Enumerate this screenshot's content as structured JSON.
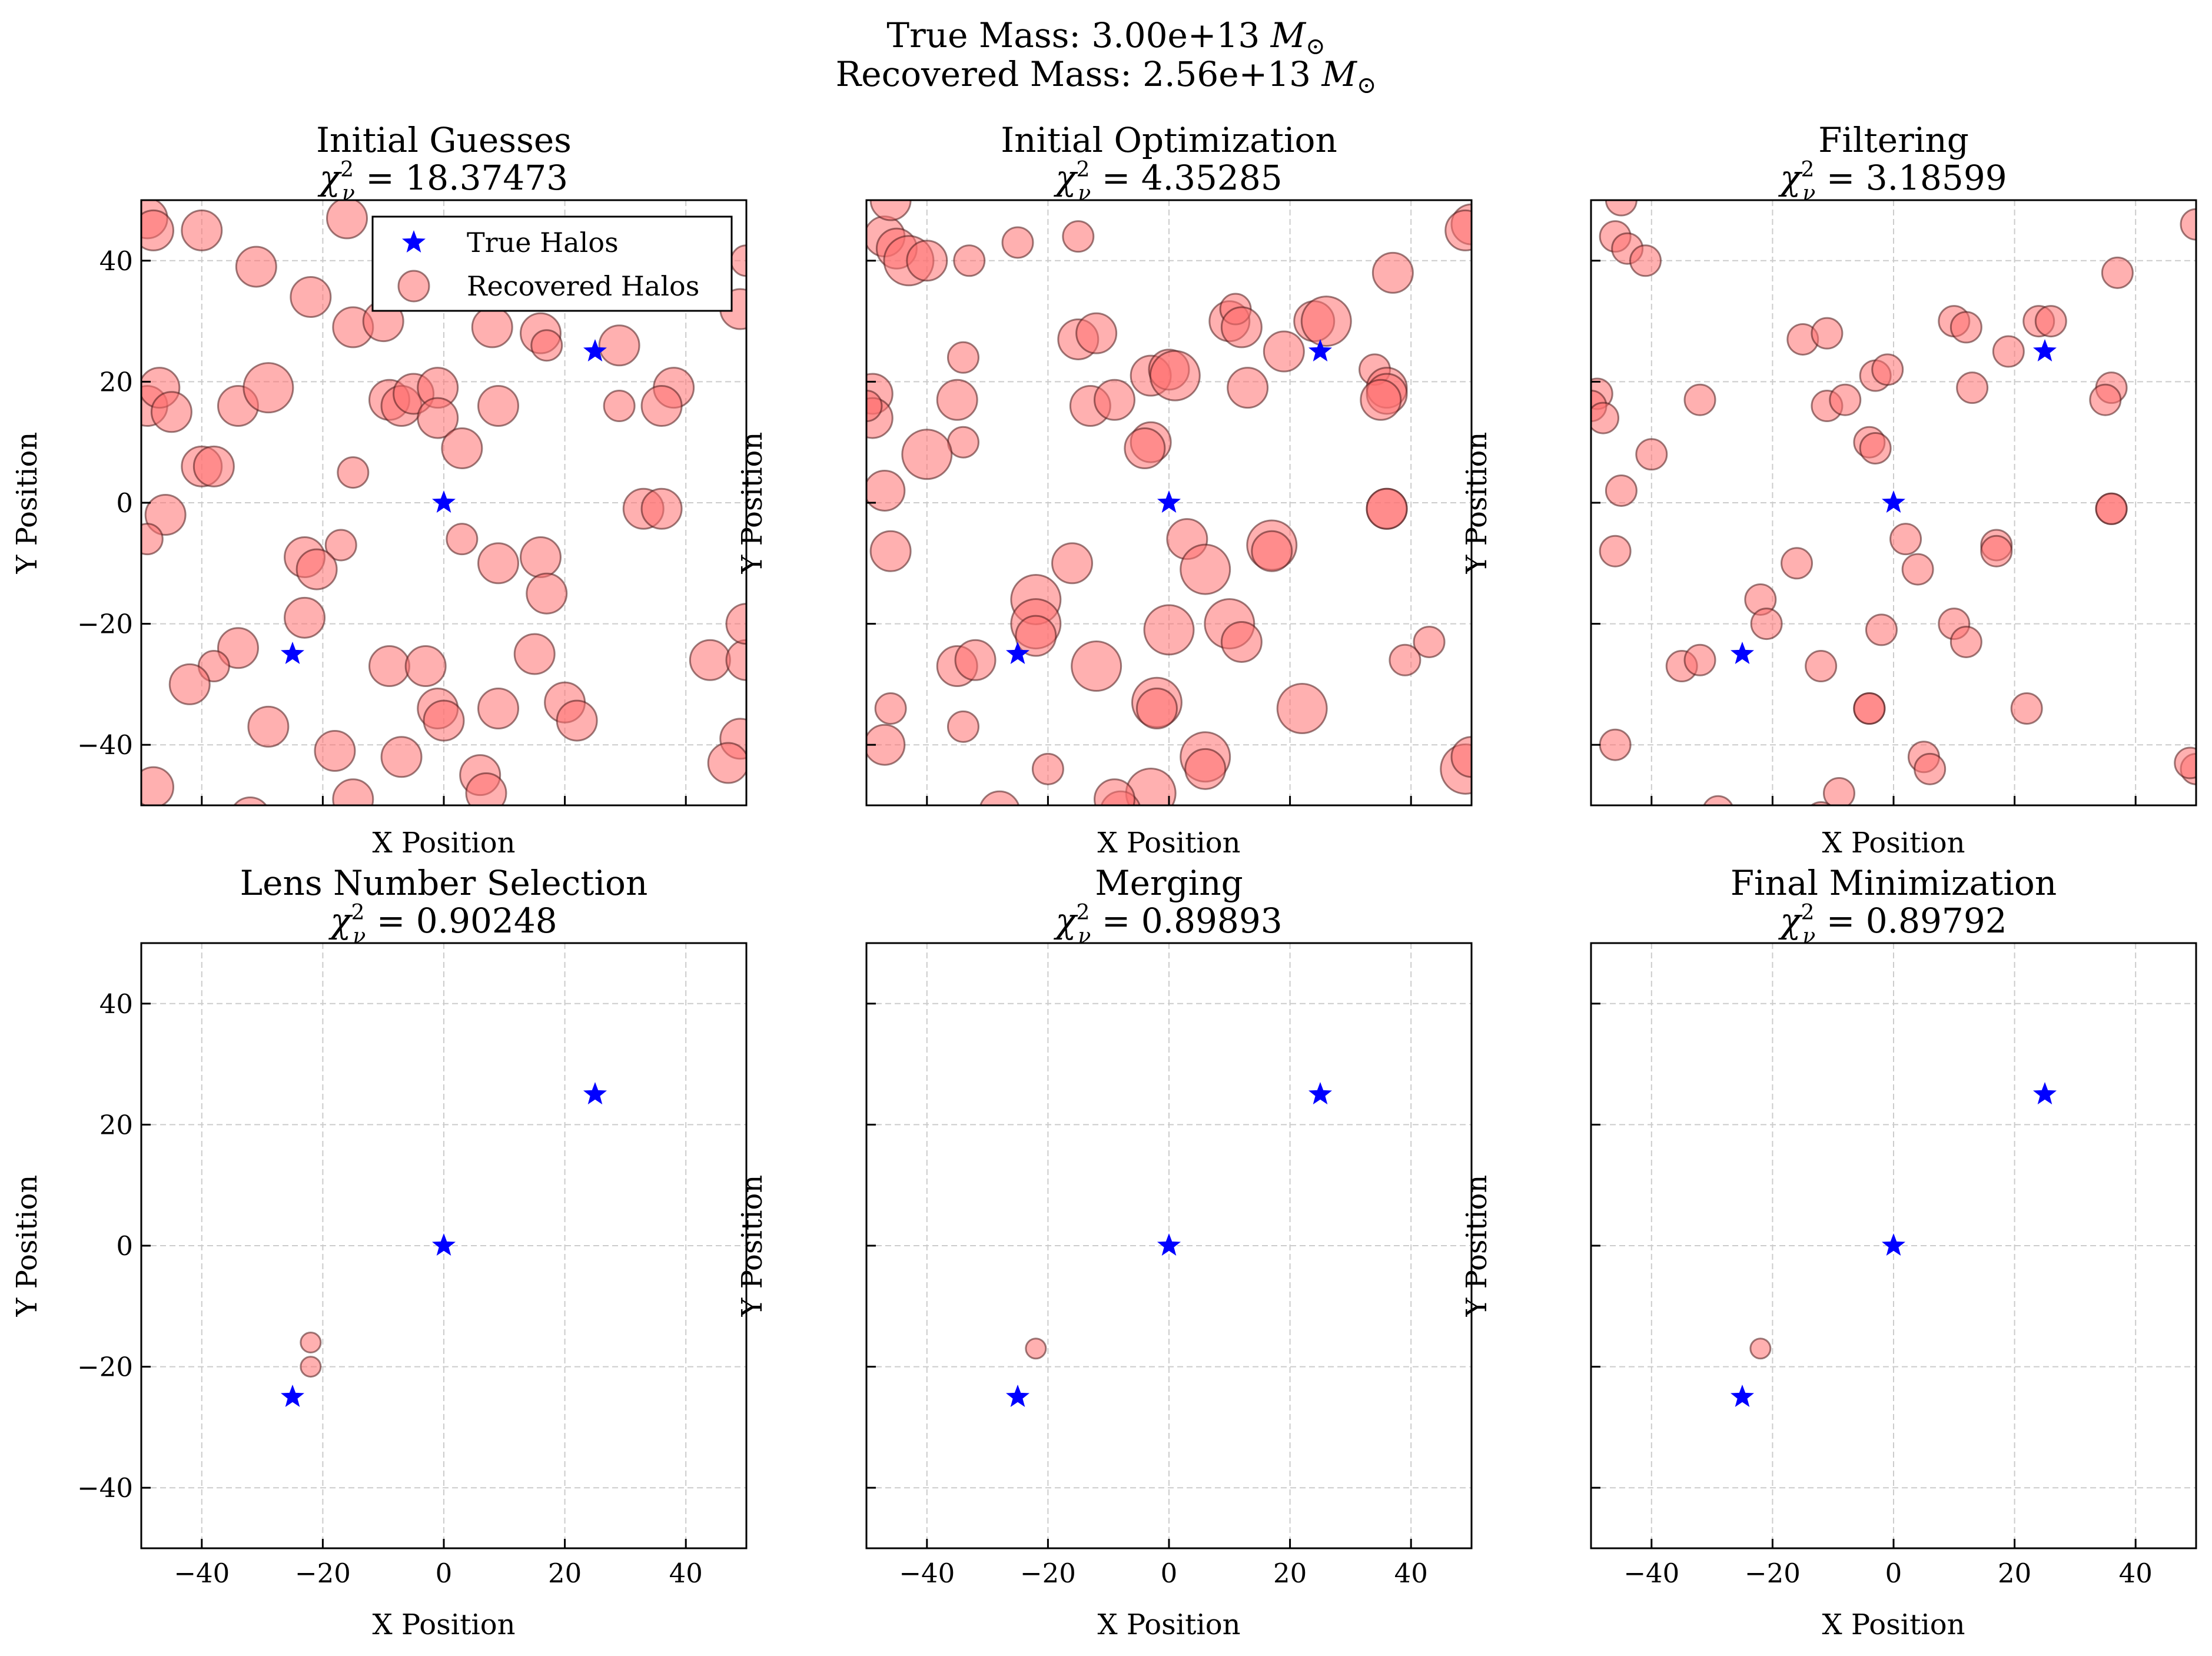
{
  "suptitle": {
    "line1_prefix": "True Mass: 3.00e+13 ",
    "line2_prefix": "Recovered Mass: 2.56e+13 ",
    "unit_symbol": "M",
    "unit_subscript": "⊙"
  },
  "colors": {
    "true_halo": "#0000ff",
    "recovered_fill": "#ff6f6f",
    "recovered_edge": "#4a1a1a",
    "grid": "#cccccc"
  },
  "legend": {
    "placement": "upper-right of first panel",
    "true_label": "True Halos",
    "recovered_label": "Recovered Halos"
  },
  "chart_data": [
    {
      "type": "scatter",
      "title": "Initial Guesses",
      "stat_symbol": "χ",
      "stat_sub": "ν",
      "stat_sup": "2",
      "stat_value": " = 18.37473",
      "xlabel": "X Position",
      "ylabel": "Y Position",
      "xlim": [
        -50,
        50
      ],
      "ylim": [
        -50,
        50
      ],
      "xticks": [
        "−40",
        "−20",
        "0",
        "20",
        "40"
      ],
      "yticks": [
        "40",
        "20",
        "0",
        "−20",
        "−40"
      ],
      "show_xticklabels": false,
      "show_yticklabels": true,
      "grid": true,
      "true_halos": [
        [
          -25,
          -25
        ],
        [
          0,
          0
        ],
        [
          25,
          25
        ]
      ],
      "recovered_halos": [
        [
          -49,
          47,
          3
        ],
        [
          -48,
          45,
          3
        ],
        [
          -40,
          45,
          3
        ],
        [
          -31,
          39,
          3
        ],
        [
          -22,
          34,
          3
        ],
        [
          -16,
          47,
          3
        ],
        [
          -15,
          29,
          3
        ],
        [
          -10,
          30,
          3
        ],
        [
          -49,
          16,
          3
        ],
        [
          -47,
          19,
          3
        ],
        [
          -45,
          15,
          3
        ],
        [
          -34,
          16,
          3
        ],
        [
          -29,
          19,
          4
        ],
        [
          -40,
          6,
          3
        ],
        [
          -38,
          6,
          3
        ],
        [
          -46,
          -2,
          3
        ],
        [
          -9,
          17,
          3
        ],
        [
          -7,
          16,
          3
        ],
        [
          -5,
          18,
          3
        ],
        [
          -1,
          19,
          3
        ],
        [
          -1,
          14,
          3
        ],
        [
          3,
          9,
          3
        ],
        [
          8,
          29,
          3
        ],
        [
          9,
          16,
          3
        ],
        [
          16,
          28,
          3
        ],
        [
          17,
          26,
          2
        ],
        [
          29,
          26,
          3
        ],
        [
          29,
          16,
          2
        ],
        [
          38,
          19,
          3
        ],
        [
          36,
          16,
          3
        ],
        [
          33,
          -1,
          3
        ],
        [
          36,
          -1,
          3
        ],
        [
          -15,
          5,
          2
        ],
        [
          -17,
          -7,
          2
        ],
        [
          -23,
          -9,
          3
        ],
        [
          -21,
          -11,
          3
        ],
        [
          -23,
          -19,
          3
        ],
        [
          -34,
          -24,
          3
        ],
        [
          -38,
          -27,
          2
        ],
        [
          -42,
          -30,
          3
        ],
        [
          -29,
          -37,
          3
        ],
        [
          -9,
          -27,
          3
        ],
        [
          -3,
          -27,
          3
        ],
        [
          -1,
          -34,
          3
        ],
        [
          0,
          -36,
          3
        ],
        [
          -7,
          -42,
          3
        ],
        [
          -18,
          -41,
          3
        ],
        [
          -15,
          -49,
          3
        ],
        [
          -48,
          -47,
          3
        ],
        [
          3,
          -6,
          2
        ],
        [
          9,
          -10,
          3
        ],
        [
          16,
          -9,
          3
        ],
        [
          17,
          -15,
          3
        ],
        [
          15,
          -25,
          3
        ],
        [
          9,
          -34,
          3
        ],
        [
          20,
          -33,
          3
        ],
        [
          22,
          -36,
          3
        ],
        [
          6,
          -45,
          3
        ],
        [
          7,
          -48,
          3
        ],
        [
          44,
          -26,
          3
        ],
        [
          50,
          -26,
          3
        ],
        [
          49,
          -39,
          3
        ],
        [
          47,
          -43,
          3
        ],
        [
          50,
          -20,
          3
        ],
        [
          49,
          32,
          3
        ],
        [
          -49,
          -6,
          2
        ],
        [
          50,
          40,
          2
        ],
        [
          -32,
          -52,
          3
        ]
      ]
    },
    {
      "type": "scatter",
      "title": "Initial Optimization",
      "stat_symbol": "χ",
      "stat_sub": "ν",
      "stat_sup": "2",
      "stat_value": " = 4.35285",
      "xlabel": "X Position",
      "ylabel": "Y Position",
      "xlim": [
        -50,
        50
      ],
      "ylim": [
        -50,
        50
      ],
      "xticks": [
        "−40",
        "−20",
        "0",
        "20",
        "40"
      ],
      "yticks": [
        "40",
        "20",
        "0",
        "−20",
        "−40"
      ],
      "show_xticklabels": false,
      "show_yticklabels": false,
      "grid": true,
      "true_halos": [
        [
          -25,
          -25
        ],
        [
          0,
          0
        ],
        [
          25,
          25
        ]
      ],
      "recovered_halos": [
        [
          -47,
          44,
          3
        ],
        [
          -45,
          42,
          3
        ],
        [
          -43,
          40,
          4
        ],
        [
          -40,
          40,
          3
        ],
        [
          -33,
          40,
          2
        ],
        [
          -25,
          43,
          2
        ],
        [
          -15,
          44,
          2
        ],
        [
          -49,
          18,
          3
        ],
        [
          -49,
          14,
          3
        ],
        [
          -35,
          17,
          3
        ],
        [
          -34,
          24,
          2
        ],
        [
          -34,
          10,
          2
        ],
        [
          -47,
          2,
          3
        ],
        [
          -40,
          8,
          4
        ],
        [
          -46,
          -8,
          3
        ],
        [
          -46,
          -34,
          2
        ],
        [
          -47,
          -40,
          3
        ],
        [
          -34,
          -37,
          2
        ],
        [
          -35,
          -27,
          3
        ],
        [
          -32,
          -26,
          3
        ],
        [
          -22,
          -16,
          4
        ],
        [
          -22,
          -20,
          4
        ],
        [
          -22,
          -22,
          3
        ],
        [
          -16,
          -10,
          3
        ],
        [
          -12,
          -27,
          4
        ],
        [
          -15,
          27,
          3
        ],
        [
          -12,
          28,
          3
        ],
        [
          -13,
          16,
          3
        ],
        [
          -9,
          17,
          3
        ],
        [
          -3,
          10,
          3
        ],
        [
          -4,
          9,
          3
        ],
        [
          -3,
          21,
          3
        ],
        [
          0,
          22,
          3
        ],
        [
          1,
          21,
          4
        ],
        [
          3,
          -6,
          3
        ],
        [
          6,
          -11,
          4
        ],
        [
          0,
          -21,
          4
        ],
        [
          -2,
          -33,
          4
        ],
        [
          -2,
          -34,
          3
        ],
        [
          6,
          -42,
          4
        ],
        [
          6,
          -44,
          3
        ],
        [
          -3,
          -48,
          4
        ],
        [
          -8,
          -51,
          3
        ],
        [
          -9,
          -49,
          3
        ],
        [
          -20,
          -44,
          2
        ],
        [
          -28,
          -51,
          3
        ],
        [
          10,
          30,
          3
        ],
        [
          11,
          32,
          2
        ],
        [
          12,
          29,
          3
        ],
        [
          13,
          19,
          3
        ],
        [
          19,
          25,
          3
        ],
        [
          24,
          30,
          3
        ],
        [
          26,
          30,
          4
        ],
        [
          34,
          22,
          2
        ],
        [
          36,
          19,
          3
        ],
        [
          36,
          18,
          3
        ],
        [
          35,
          17,
          3
        ],
        [
          37,
          38,
          3
        ],
        [
          36,
          -1,
          3
        ],
        [
          36,
          -1,
          3
        ],
        [
          17,
          -7,
          4
        ],
        [
          17,
          -8,
          3
        ],
        [
          10,
          -20,
          4
        ],
        [
          12,
          -23,
          3
        ],
        [
          22,
          -34,
          4
        ],
        [
          43,
          -23,
          2
        ],
        [
          39,
          -26,
          2
        ],
        [
          50,
          46,
          3
        ],
        [
          49,
          45,
          3
        ],
        [
          49,
          -44,
          4
        ],
        [
          50,
          -42,
          3
        ],
        [
          -46,
          50,
          3
        ],
        [
          -50,
          16,
          2
        ]
      ]
    },
    {
      "type": "scatter",
      "title": "Filtering",
      "stat_symbol": "χ",
      "stat_sub": "ν",
      "stat_sup": "2",
      "stat_value": " = 3.18599",
      "xlabel": "X Position",
      "ylabel": "Y Position",
      "xlim": [
        -50,
        50
      ],
      "ylim": [
        -50,
        50
      ],
      "xticks": [
        "−40",
        "−20",
        "0",
        "20",
        "40"
      ],
      "yticks": [
        "40",
        "20",
        "0",
        "−20",
        "−40"
      ],
      "show_xticklabels": false,
      "show_yticklabels": false,
      "grid": true,
      "true_halos": [
        [
          -25,
          -25
        ],
        [
          0,
          0
        ],
        [
          25,
          25
        ]
      ],
      "recovered_halos": [
        [
          -46,
          44,
          2
        ],
        [
          -44,
          42,
          2
        ],
        [
          -41,
          40,
          2
        ],
        [
          -45,
          50,
          2
        ],
        [
          -49,
          18,
          2
        ],
        [
          -50,
          16,
          2
        ],
        [
          -48,
          14,
          2
        ],
        [
          -32,
          17,
          2
        ],
        [
          -45,
          2,
          2
        ],
        [
          -40,
          8,
          2
        ],
        [
          -46,
          -8,
          2
        ],
        [
          -46,
          -40,
          2
        ],
        [
          -35,
          -27,
          2
        ],
        [
          -32,
          -26,
          2
        ],
        [
          -22,
          -16,
          2
        ],
        [
          -21,
          -20,
          2
        ],
        [
          -16,
          -10,
          2
        ],
        [
          -15,
          27,
          2
        ],
        [
          -11,
          28,
          2
        ],
        [
          -11,
          16,
          2
        ],
        [
          -8,
          17,
          2
        ],
        [
          -4,
          10,
          2
        ],
        [
          -3,
          9,
          2
        ],
        [
          -3,
          21,
          2
        ],
        [
          -1,
          22,
          2
        ],
        [
          2,
          -6,
          2
        ],
        [
          4,
          -11,
          2
        ],
        [
          -2,
          -21,
          2
        ],
        [
          -4,
          -34,
          2
        ],
        [
          -4,
          -34,
          2
        ],
        [
          5,
          -42,
          2
        ],
        [
          6,
          -44,
          2
        ],
        [
          -9,
          -48,
          2
        ],
        [
          -12,
          -27,
          2
        ],
        [
          -29,
          -51,
          2
        ],
        [
          -12,
          -52,
          2
        ],
        [
          10,
          30,
          2
        ],
        [
          12,
          29,
          2
        ],
        [
          13,
          19,
          2
        ],
        [
          19,
          25,
          2
        ],
        [
          24,
          30,
          2
        ],
        [
          26,
          30,
          2
        ],
        [
          36,
          19,
          2
        ],
        [
          35,
          17,
          2
        ],
        [
          37,
          38,
          2
        ],
        [
          36,
          -1,
          2
        ],
        [
          36,
          -1,
          2
        ],
        [
          17,
          -7,
          2
        ],
        [
          17,
          -8,
          2
        ],
        [
          10,
          -20,
          2
        ],
        [
          12,
          -23,
          2
        ],
        [
          22,
          -34,
          2
        ],
        [
          50,
          46,
          2
        ],
        [
          50,
          -44,
          2
        ],
        [
          49,
          -43,
          2
        ]
      ]
    },
    {
      "type": "scatter",
      "title": "Lens Number Selection",
      "stat_symbol": "χ",
      "stat_sub": "ν",
      "stat_sup": "2",
      "stat_value": " = 0.90248",
      "xlabel": "X Position",
      "ylabel": "Y Position",
      "xlim": [
        -50,
        50
      ],
      "ylim": [
        -50,
        50
      ],
      "xticks": [
        "−40",
        "−20",
        "0",
        "20",
        "40"
      ],
      "yticks": [
        "40",
        "20",
        "0",
        "−20",
        "−40"
      ],
      "show_xticklabels": true,
      "show_yticklabels": true,
      "grid": true,
      "true_halos": [
        [
          -25,
          -25
        ],
        [
          0,
          0
        ],
        [
          25,
          25
        ]
      ],
      "recovered_halos": [
        [
          -22,
          -16,
          1
        ],
        [
          -22,
          -20,
          1
        ]
      ]
    },
    {
      "type": "scatter",
      "title": "Merging",
      "stat_symbol": "χ",
      "stat_sub": "ν",
      "stat_sup": "2",
      "stat_value": " = 0.89893",
      "xlabel": "X Position",
      "ylabel": "Y Position",
      "xlim": [
        -50,
        50
      ],
      "ylim": [
        -50,
        50
      ],
      "xticks": [
        "−40",
        "−20",
        "0",
        "20",
        "40"
      ],
      "yticks": [
        "40",
        "20",
        "0",
        "−20",
        "−40"
      ],
      "show_xticklabels": true,
      "show_yticklabels": false,
      "grid": true,
      "true_halos": [
        [
          -25,
          -25
        ],
        [
          0,
          0
        ],
        [
          25,
          25
        ]
      ],
      "recovered_halos": [
        [
          -22,
          -17,
          1
        ]
      ]
    },
    {
      "type": "scatter",
      "title": "Final Minimization",
      "stat_symbol": "χ",
      "stat_sub": "ν",
      "stat_sup": "2",
      "stat_value": " = 0.89792",
      "xlabel": "X Position",
      "ylabel": "Y Position",
      "xlim": [
        -50,
        50
      ],
      "ylim": [
        -50,
        50
      ],
      "xticks": [
        "−40",
        "−20",
        "0",
        "20",
        "40"
      ],
      "yticks": [
        "40",
        "20",
        "0",
        "−20",
        "−40"
      ],
      "show_xticklabels": true,
      "show_yticklabels": false,
      "grid": true,
      "true_halos": [
        [
          -25,
          -25
        ],
        [
          0,
          0
        ],
        [
          25,
          25
        ]
      ],
      "recovered_halos": [
        [
          -22,
          -17,
          1
        ]
      ]
    }
  ]
}
